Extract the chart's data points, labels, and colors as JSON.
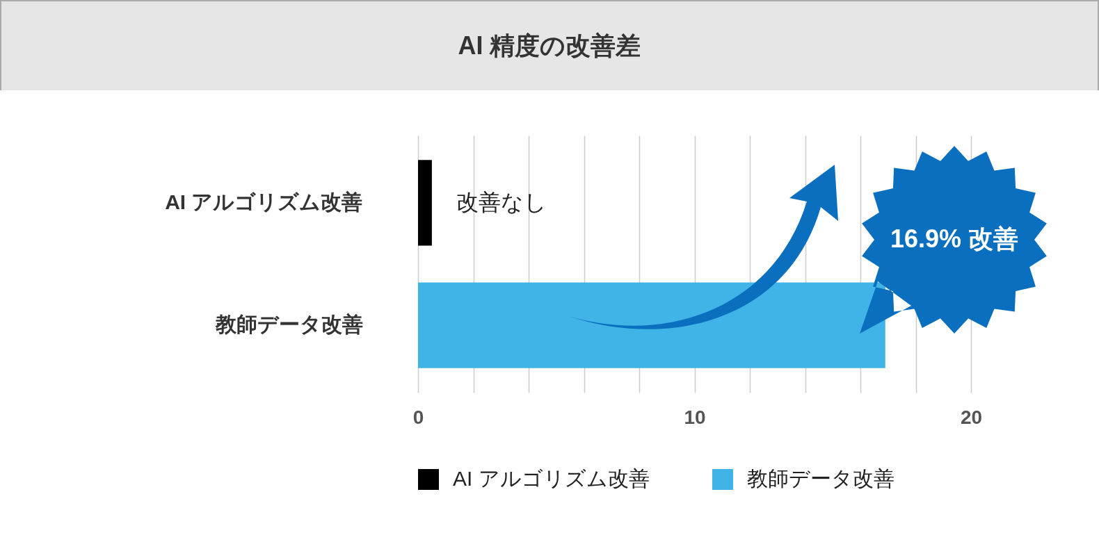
{
  "chart_data": {
    "type": "bar",
    "orientation": "horizontal",
    "title": "AI 精度の改善差",
    "categories": [
      "AI アルゴリズム改善",
      "教師データ改善"
    ],
    "series": [
      {
        "name": "AI アルゴリズム改善",
        "color": "#000000",
        "values": [
          0.5,
          null
        ]
      },
      {
        "name": "教師データ改善",
        "color": "#40b4e6",
        "values": [
          null,
          16.9
        ]
      }
    ],
    "xlim": [
      0,
      20
    ],
    "xticks": [
      0,
      {
        "value": 2,
        "label": null
      },
      {
        "value": 4,
        "label": null
      },
      {
        "value": 6,
        "label": null
      },
      {
        "value": 8,
        "label": null
      },
      10,
      {
        "value": 12,
        "label": null
      },
      {
        "value": 14,
        "label": null
      },
      {
        "value": 16,
        "label": null
      },
      {
        "value": 18,
        "label": null
      },
      20
    ],
    "grid": "x",
    "legend": "bottom",
    "annotations": [
      {
        "text": "改善なし",
        "x": 0.5,
        "y": "AI アルゴリズム改善"
      },
      "16.9% 改善"
    ]
  }
}
